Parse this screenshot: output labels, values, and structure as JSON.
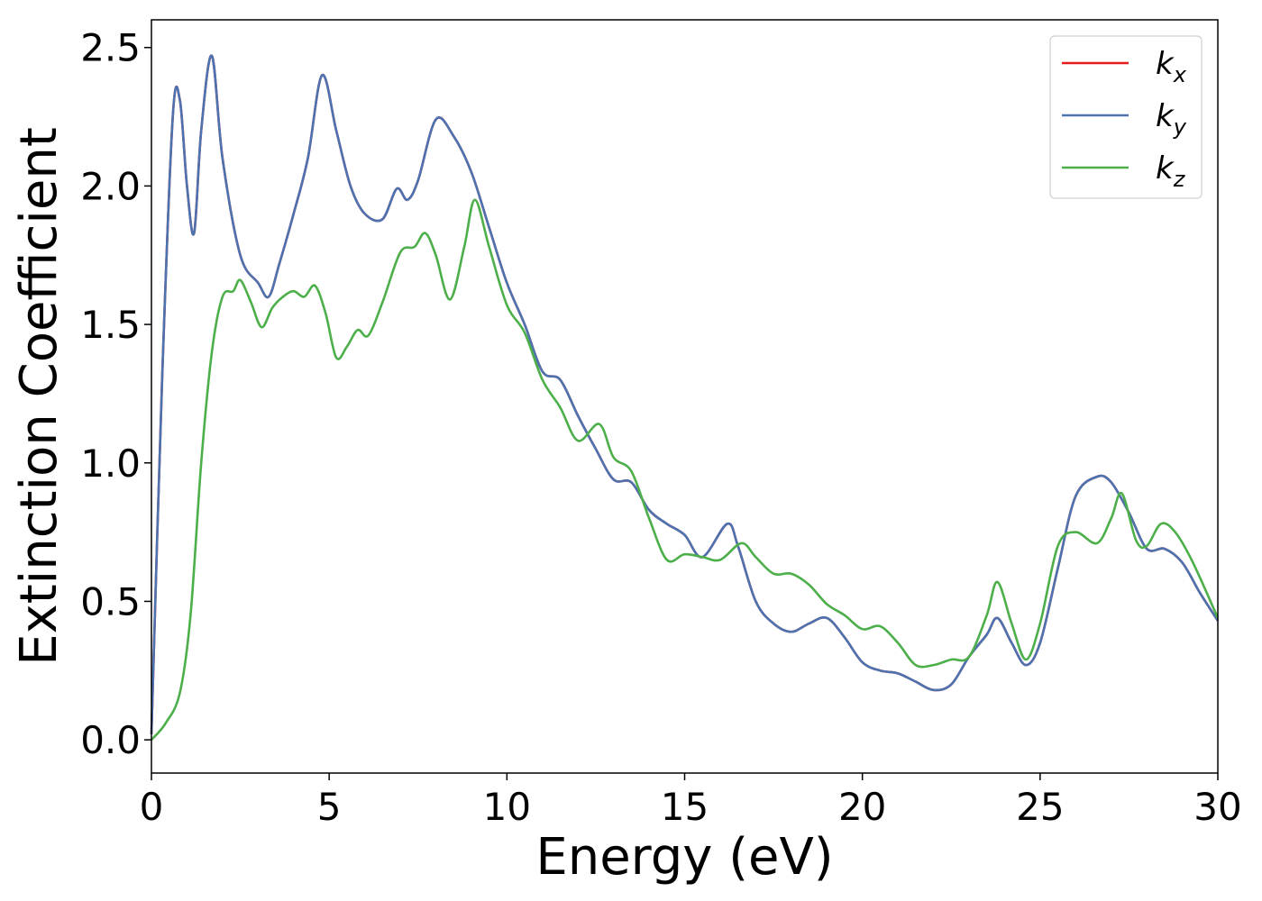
{
  "chart_data": {
    "type": "line",
    "xlabel": "Energy (eV)",
    "ylabel": "Extinction Coefficient",
    "xlim": [
      0,
      30
    ],
    "ylim": [
      -0.12,
      2.6
    ],
    "xticks": [
      "0",
      "5",
      "10",
      "15",
      "20",
      "25",
      "30"
    ],
    "yticks": [
      "0.0",
      "0.5",
      "1.0",
      "1.5",
      "2.0",
      "2.5"
    ],
    "grid": false,
    "legend_position": "top-right",
    "series": [
      {
        "name": "k_x",
        "legend_base": "k",
        "legend_sub": "x",
        "color": "#e41a1c",
        "x": [
          0,
          0.3,
          0.6,
          0.8,
          1.0,
          1.2,
          1.4,
          1.7,
          2.0,
          2.5,
          3.0,
          3.3,
          3.6,
          4.0,
          4.4,
          4.8,
          5.2,
          5.6,
          6.0,
          6.5,
          6.9,
          7.2,
          7.5,
          8.0,
          8.5,
          9.0,
          9.5,
          10.0,
          10.5,
          11.0,
          11.5,
          12.0,
          12.5,
          13.0,
          13.5,
          14.0,
          14.5,
          15.0,
          15.5,
          16.2,
          16.5,
          17.0,
          17.5,
          18.0,
          18.5,
          19.0,
          19.5,
          20.0,
          20.5,
          21.0,
          21.5,
          22.0,
          22.5,
          23.0,
          23.5,
          23.8,
          24.2,
          24.6,
          25.0,
          25.5,
          26.0,
          26.6,
          27.0,
          27.5,
          28.0,
          28.5,
          29.0,
          29.5,
          30.0
        ],
        "y": [
          0.02,
          1.3,
          2.25,
          2.31,
          2.0,
          1.83,
          2.2,
          2.47,
          2.1,
          1.75,
          1.65,
          1.6,
          1.72,
          1.9,
          2.1,
          2.4,
          2.2,
          2.0,
          1.9,
          1.88,
          1.99,
          1.95,
          2.02,
          2.24,
          2.18,
          2.05,
          1.85,
          1.65,
          1.5,
          1.33,
          1.3,
          1.17,
          1.05,
          0.94,
          0.93,
          0.83,
          0.78,
          0.74,
          0.66,
          0.78,
          0.7,
          0.5,
          0.42,
          0.39,
          0.42,
          0.44,
          0.37,
          0.28,
          0.25,
          0.24,
          0.21,
          0.18,
          0.2,
          0.3,
          0.38,
          0.44,
          0.35,
          0.27,
          0.35,
          0.62,
          0.88,
          0.95,
          0.93,
          0.82,
          0.69,
          0.69,
          0.64,
          0.53,
          0.43
        ]
      },
      {
        "name": "k_y",
        "legend_base": "k",
        "legend_sub": "y",
        "color": "#4c72b0",
        "x": [
          0,
          0.3,
          0.6,
          0.8,
          1.0,
          1.2,
          1.4,
          1.7,
          2.0,
          2.5,
          3.0,
          3.3,
          3.6,
          4.0,
          4.4,
          4.8,
          5.2,
          5.6,
          6.0,
          6.5,
          6.9,
          7.2,
          7.5,
          8.0,
          8.5,
          9.0,
          9.5,
          10.0,
          10.5,
          11.0,
          11.5,
          12.0,
          12.5,
          13.0,
          13.5,
          14.0,
          14.5,
          15.0,
          15.5,
          16.2,
          16.5,
          17.0,
          17.5,
          18.0,
          18.5,
          19.0,
          19.5,
          20.0,
          20.5,
          21.0,
          21.5,
          22.0,
          22.5,
          23.0,
          23.5,
          23.8,
          24.2,
          24.6,
          25.0,
          25.5,
          26.0,
          26.6,
          27.0,
          27.5,
          28.0,
          28.5,
          29.0,
          29.5,
          30.0
        ],
        "y": [
          0.02,
          1.3,
          2.25,
          2.31,
          2.0,
          1.83,
          2.2,
          2.47,
          2.1,
          1.75,
          1.65,
          1.6,
          1.72,
          1.9,
          2.1,
          2.4,
          2.2,
          2.0,
          1.9,
          1.88,
          1.99,
          1.95,
          2.02,
          2.24,
          2.18,
          2.05,
          1.85,
          1.65,
          1.5,
          1.33,
          1.3,
          1.17,
          1.05,
          0.94,
          0.93,
          0.83,
          0.78,
          0.74,
          0.66,
          0.78,
          0.7,
          0.5,
          0.42,
          0.39,
          0.42,
          0.44,
          0.37,
          0.28,
          0.25,
          0.24,
          0.21,
          0.18,
          0.2,
          0.3,
          0.38,
          0.44,
          0.35,
          0.27,
          0.35,
          0.62,
          0.88,
          0.95,
          0.93,
          0.82,
          0.69,
          0.69,
          0.64,
          0.53,
          0.43
        ]
      },
      {
        "name": "k_z",
        "legend_base": "k",
        "legend_sub": "z",
        "color": "#4daf4a",
        "x": [
          0,
          0.4,
          0.8,
          1.1,
          1.4,
          1.7,
          2.0,
          2.3,
          2.5,
          2.8,
          3.1,
          3.4,
          3.7,
          4.0,
          4.3,
          4.6,
          4.9,
          5.2,
          5.5,
          5.8,
          6.1,
          6.5,
          7.0,
          7.4,
          7.7,
          8.0,
          8.4,
          8.8,
          9.1,
          9.5,
          10.0,
          10.5,
          11.0,
          11.5,
          12.0,
          12.6,
          13.0,
          13.5,
          14.0,
          14.5,
          15.0,
          15.5,
          16.0,
          16.6,
          17.0,
          17.5,
          18.0,
          18.5,
          19.0,
          19.5,
          20.0,
          20.5,
          21.0,
          21.5,
          22.0,
          22.5,
          23.0,
          23.5,
          23.8,
          24.2,
          24.6,
          25.0,
          25.5,
          26.0,
          26.6,
          27.0,
          27.3,
          27.7,
          28.0,
          28.4,
          28.8,
          29.3,
          30.0
        ],
        "y": [
          0.0,
          0.06,
          0.17,
          0.45,
          1.0,
          1.4,
          1.6,
          1.62,
          1.66,
          1.58,
          1.49,
          1.56,
          1.6,
          1.62,
          1.6,
          1.64,
          1.54,
          1.38,
          1.42,
          1.48,
          1.46,
          1.58,
          1.76,
          1.78,
          1.83,
          1.75,
          1.59,
          1.78,
          1.95,
          1.78,
          1.57,
          1.47,
          1.3,
          1.2,
          1.08,
          1.14,
          1.02,
          0.97,
          0.8,
          0.65,
          0.67,
          0.66,
          0.65,
          0.71,
          0.66,
          0.6,
          0.6,
          0.56,
          0.49,
          0.45,
          0.4,
          0.41,
          0.35,
          0.27,
          0.27,
          0.29,
          0.3,
          0.45,
          0.57,
          0.42,
          0.29,
          0.42,
          0.7,
          0.75,
          0.71,
          0.8,
          0.89,
          0.72,
          0.7,
          0.78,
          0.75,
          0.64,
          0.44
        ]
      }
    ]
  }
}
